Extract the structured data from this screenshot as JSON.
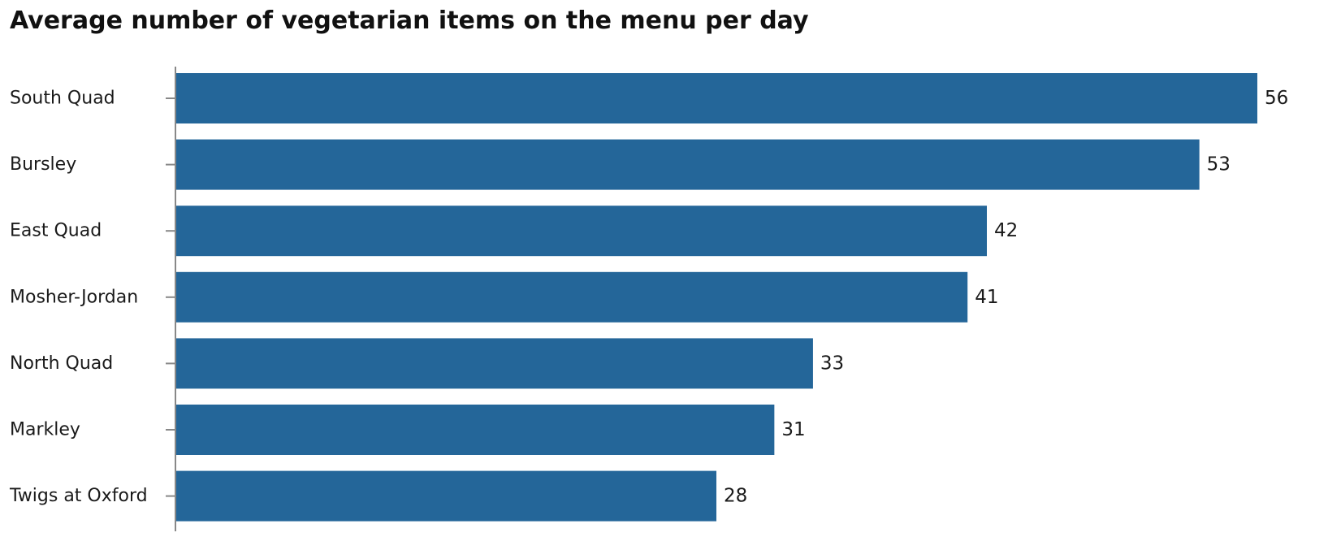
{
  "chart_data": {
    "type": "bar",
    "orientation": "horizontal",
    "title": "Average number of vegetarian items on the menu per day",
    "categories": [
      "South Quad",
      "Bursley",
      "East Quad",
      "Mosher-Jordan",
      "North Quad",
      "Markley",
      "Twigs at Oxford"
    ],
    "values": [
      56,
      53,
      42,
      41,
      33,
      31,
      28
    ],
    "xlim": [
      0,
      56
    ],
    "xlabel": "",
    "ylabel": "",
    "grid": false,
    "legend": "none",
    "data_labels": true,
    "bar_color": "#246699",
    "axis_color": "#888888"
  }
}
